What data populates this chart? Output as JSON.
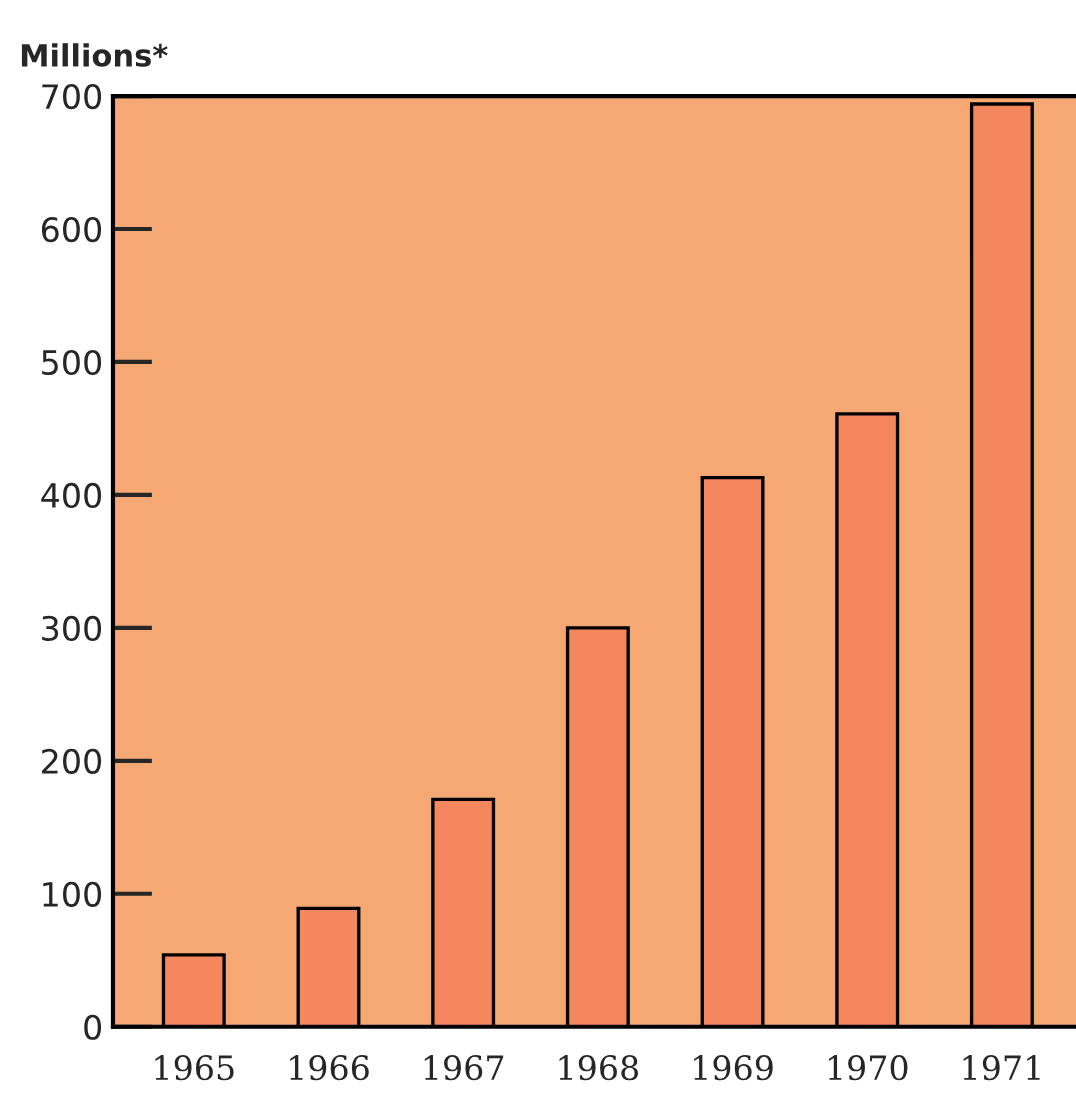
{
  "chart_data": {
    "type": "bar",
    "ylabel": "Millions*",
    "categories": [
      "1965",
      "1966",
      "1967",
      "1968",
      "1969",
      "1970",
      "1971"
    ],
    "values": [
      54,
      89,
      171,
      300,
      413,
      461,
      694
    ],
    "color": "#f4875e",
    "ylim": [
      0,
      700
    ],
    "yticks": [
      0,
      100,
      200,
      300,
      400,
      500,
      600,
      700
    ],
    "grid": false
  }
}
